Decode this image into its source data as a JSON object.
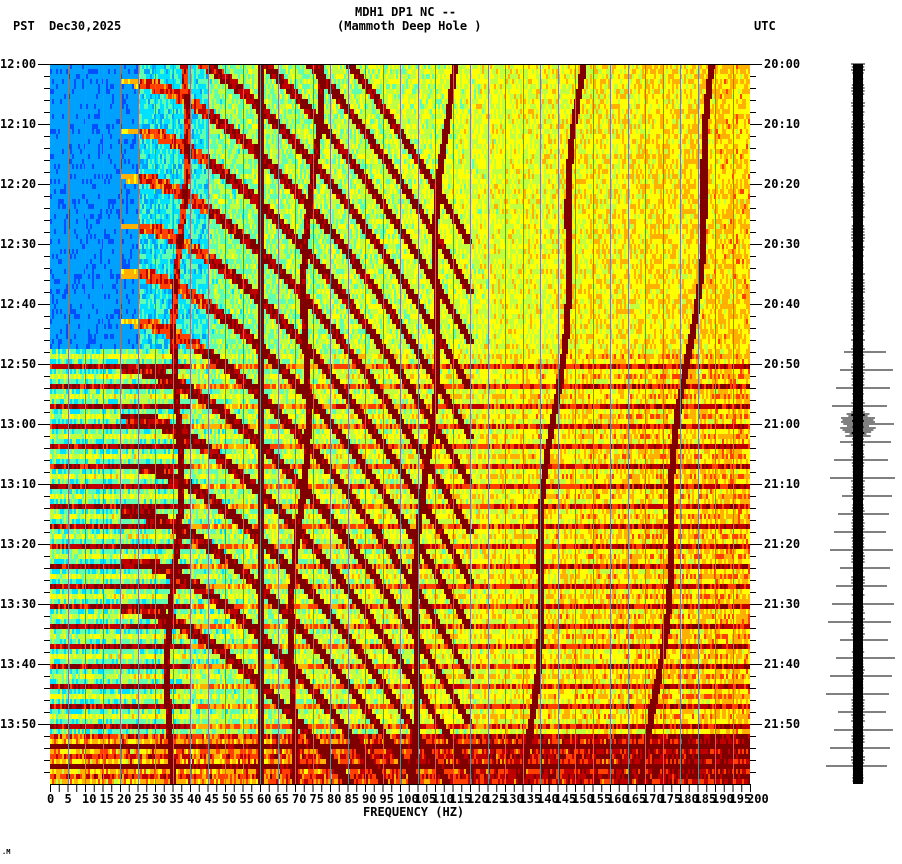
{
  "header": {
    "timezone_left": "PST",
    "date": "Dec30,2025",
    "station_line": "MDH1 DP1 NC --",
    "station_name": "(Mammoth Deep Hole )",
    "timezone_right": "UTC"
  },
  "footer": {
    "mark": ".M"
  },
  "colors": {
    "background": "#ffffff",
    "axis": "#000000",
    "gridline": "#808080",
    "colormap": [
      "#0050ff",
      "#00a0ff",
      "#00e0ff",
      "#60ffb0",
      "#c0ff40",
      "#ffff00",
      "#ffb000",
      "#ff4000",
      "#c00000",
      "#800000"
    ]
  },
  "chart_data": {
    "type": "heatmap",
    "title": "MDH1 DP1 NC -- (Mammoth Deep Hole )",
    "subtitle": "PST Dec30,2025 / UTC",
    "xlabel": "FREQUENCY (HZ)",
    "ylabel_left": "PST time",
    "ylabel_right": "UTC time",
    "xlim": [
      0,
      200
    ],
    "x_ticks": [
      0,
      5,
      10,
      15,
      20,
      25,
      30,
      35,
      40,
      45,
      50,
      55,
      60,
      65,
      70,
      75,
      80,
      85,
      90,
      95,
      100,
      105,
      110,
      115,
      120,
      125,
      130,
      135,
      140,
      145,
      150,
      155,
      160,
      165,
      170,
      175,
      180,
      185,
      190,
      195,
      200
    ],
    "y_ticks_left": [
      "12:00",
      "12:10",
      "12:20",
      "12:30",
      "12:40",
      "12:50",
      "13:00",
      "13:10",
      "13:20",
      "13:30",
      "13:40",
      "13:50"
    ],
    "y_ticks_right": [
      "20:00",
      "20:10",
      "20:20",
      "20:30",
      "20:40",
      "20:50",
      "21:00",
      "21:10",
      "21:20",
      "21:30",
      "21:40",
      "21:50"
    ],
    "time_range_minutes": [
      0,
      120
    ],
    "minor_tick_interval_minutes": 2,
    "grid": true,
    "features": [
      {
        "type": "persistent_line",
        "freq_hz": 60,
        "intensity": "max",
        "description": "strong power-line hum for entire window"
      },
      {
        "type": "wandering_line",
        "freq_hz_start": 38,
        "freq_hz_end": 34,
        "time_span": "12:00-13:55"
      },
      {
        "type": "wandering_line",
        "freq_hz_start": 76,
        "freq_hz_end": 68,
        "time_span": "12:00-13:55"
      },
      {
        "type": "wandering_line",
        "freq_hz_start": 114,
        "freq_hz_end": 102,
        "time_span": "12:00-13:55"
      },
      {
        "type": "wandering_line",
        "freq_hz_start": 152,
        "freq_hz_end": 135,
        "time_span": "12:00-13:55"
      },
      {
        "type": "wandering_line",
        "freq_hz_start": 190,
        "freq_hz_end": 170,
        "time_span": "12:00-13:55"
      },
      {
        "type": "chirp_family",
        "description": "repeating descending-frequency curved arcs across 20-120 Hz"
      },
      {
        "type": "broadband_stripes",
        "time_span": "12:47-13:58",
        "description": "horizontal high-energy banding after 12:47"
      },
      {
        "type": "low_noise_region",
        "freq_hz": [
          0,
          25
        ],
        "time_span": "12:00-12:47",
        "description": "quiet blue region"
      },
      {
        "type": "high_energy",
        "time_span": "13:51-13:58",
        "description": "strong broadband energy at end of window"
      }
    ]
  },
  "seismogram": {
    "description": "vertical waveform trace with hourly-spaced horizontal amplitude spikes",
    "spike_times_pst": [
      "12:48",
      "12:51",
      "12:54",
      "12:57",
      "13:00",
      "13:03",
      "13:06",
      "13:09",
      "13:12",
      "13:15",
      "13:18",
      "13:21",
      "13:24",
      "13:27",
      "13:30",
      "13:33",
      "13:36",
      "13:39",
      "13:42",
      "13:45",
      "13:48",
      "13:51",
      "13:54",
      "13:57"
    ],
    "event_time_pst": "13:00"
  }
}
